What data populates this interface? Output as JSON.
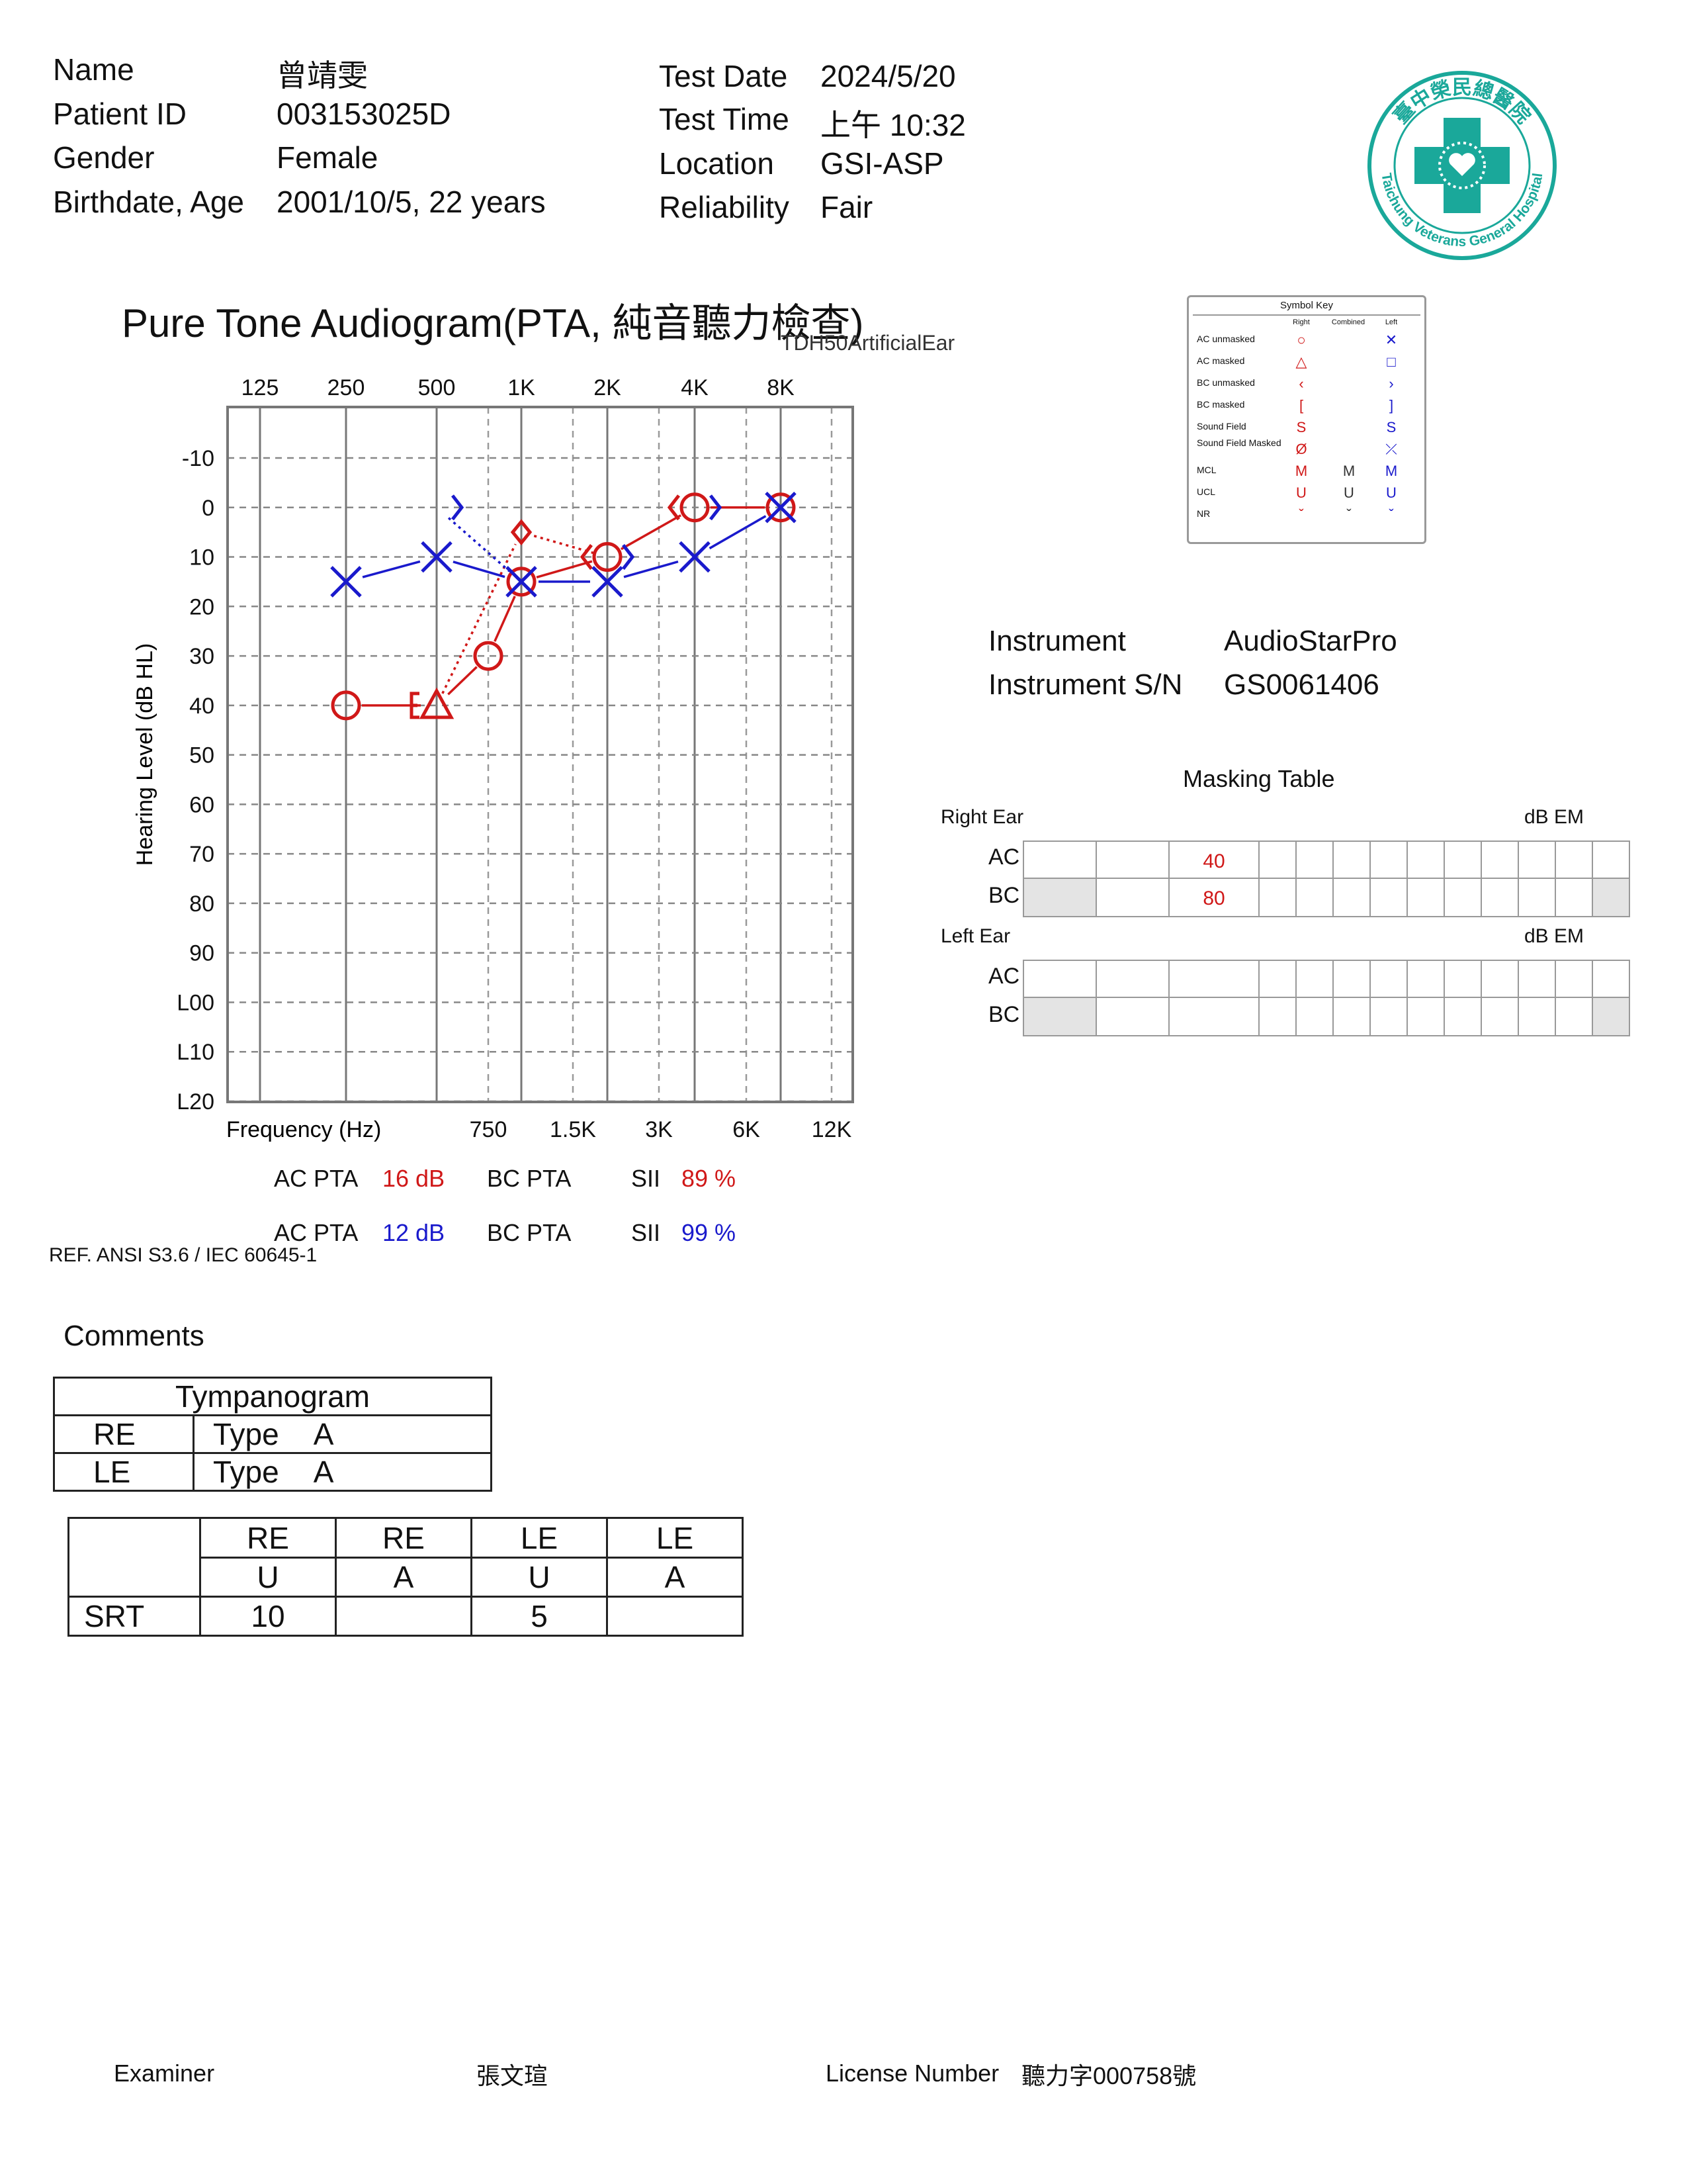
{
  "patient": {
    "name_label": "Name",
    "name_value": "曾靖雯",
    "id_label": "Patient ID",
    "id_value": "003153025D",
    "gender_label": "Gender",
    "gender_value": "Female",
    "birth_label": "Birthdate, Age",
    "birth_value": "2001/10/5, 22 years"
  },
  "test": {
    "date_label": "Test Date",
    "date_value": "2024/5/20",
    "time_label": "Test Time",
    "time_value": "上午 10:32",
    "location_label": "Location",
    "location_value": "GSI-ASP",
    "reliability_label": "Reliability",
    "reliability_value": "Fair"
  },
  "hospital": {
    "logo_top": "臺中榮民總醫院",
    "logo_bottom": "Taichung Veterans General Hospital",
    "color": "#1aa89a"
  },
  "audiogram": {
    "title": "Pure Tone Audiogram(PTA, 純音聽力檢查)",
    "transducer": "TDH50ArtificialEar",
    "ylabel": "Hearing Level (dB HL)",
    "xlabel": "Frequency (Hz)",
    "top_ticks": [
      "125",
      "250",
      "500",
      "1K",
      "2K",
      "4K",
      "8K"
    ],
    "bottom_ticks": [
      "750",
      "1.5K",
      "3K",
      "6K",
      "12K"
    ],
    "y_ticks": [
      "-10",
      "0",
      "10",
      "20",
      "30",
      "40",
      "50",
      "60",
      "70",
      "80",
      "90",
      "L00",
      "L10",
      "L20"
    ]
  },
  "chart_data": {
    "type": "line",
    "x_scale": "log",
    "ylim": [
      -10,
      120
    ],
    "y_inverted": true,
    "series": [
      {
        "color": "#d01818",
        "symbol": "circle",
        "x": [
          250,
          750,
          1000,
          2000,
          4000,
          8000
        ],
        "y": [
          40,
          30,
          15,
          10,
          0,
          0
        ]
      },
      {
        "color": "#d01818",
        "symbol": "triangle",
        "x": [
          500
        ],
        "y": [
          40
        ]
      },
      {
        "color": "#d01818",
        "symbol": "bc-masked-bracket",
        "x": [
          500
        ],
        "y": [
          40
        ]
      },
      {
        "color": "#d01818",
        "symbol": "bc-unmasked-lt",
        "x": [
          2000,
          4000
        ],
        "y": [
          10,
          0
        ]
      },
      {
        "color": "#1a1acc",
        "symbol": "x",
        "x": [
          250,
          500,
          1000,
          2000,
          4000,
          8000
        ],
        "y": [
          15,
          10,
          15,
          15,
          10,
          0
        ]
      },
      {
        "color": "#1a1acc",
        "symbol": "bc-unmasked-gt",
        "x": [
          500,
          2000,
          4000
        ],
        "y": [
          0,
          10,
          0
        ]
      },
      {
        "color": "#d01818",
        "symbol": "diamond",
        "x": [
          1000
        ],
        "y": [
          5
        ]
      }
    ]
  },
  "pta": {
    "right": {
      "ac_label": "AC PTA",
      "ac_value": "16 dB",
      "bc_label": "BC PTA",
      "sii_label": "SII",
      "sii_value": "89 %"
    },
    "left": {
      "ac_label": "AC PTA",
      "ac_value": "12 dB",
      "bc_label": "BC PTA",
      "sii_label": "SII",
      "sii_value": "99 %"
    }
  },
  "ref": "REF. ANSI S3.6 / IEC 60645-1",
  "symbol_key": {
    "title": "Symbol Key",
    "col_right": "Right",
    "col_combined": "Combined",
    "col_left": "Left",
    "rows": [
      {
        "label": "AC unmasked",
        "right": "○",
        "combined": "",
        "left": "✕"
      },
      {
        "label": "AC masked",
        "right": "△",
        "combined": "",
        "left": "□"
      },
      {
        "label": "BC unmasked",
        "right": "‹",
        "combined": "",
        "left": "›"
      },
      {
        "label": "BC masked",
        "right": "[",
        "combined": "",
        "left": "]"
      },
      {
        "label": "Sound Field",
        "right": "S",
        "combined": "",
        "left": "S"
      },
      {
        "label": "Sound Field Masked",
        "right": "Ø",
        "combined": "",
        "left": "⤫"
      },
      {
        "label": "MCL",
        "right": "M",
        "combined": "M",
        "left": "M"
      },
      {
        "label": "UCL",
        "right": "U",
        "combined": "U",
        "left": "U"
      },
      {
        "label": "NR",
        "right": "ˇ",
        "combined": "ˇ",
        "left": "ˇ"
      }
    ]
  },
  "instrument": {
    "label": "Instrument",
    "value": "AudioStarPro",
    "sn_label": "Instrument S/N",
    "sn_value": "GS0061406"
  },
  "masking": {
    "title": "Masking Table",
    "right_ear": "Right Ear",
    "left_ear": "Left Ear",
    "unit": "dB EM",
    "ac": "AC",
    "bc": "BC",
    "right_ac": [
      "",
      "",
      "40",
      "",
      "",
      "",
      "",
      "",
      "",
      "",
      "",
      "",
      ""
    ],
    "right_bc": [
      "",
      "",
      "80",
      "",
      "",
      "",
      "",
      "",
      "",
      "",
      "",
      "",
      ""
    ]
  },
  "comments": {
    "label": "Comments",
    "tymp_title": "Tympanogram",
    "re": "RE",
    "le": "LE",
    "type_label": "Type",
    "re_type": "A",
    "le_type": "A"
  },
  "srt": {
    "headers_ear": [
      "RE",
      "RE",
      "LE",
      "LE"
    ],
    "headers_mask": [
      "U",
      "A",
      "U",
      "A"
    ],
    "row_label": "SRT",
    "values": [
      "10",
      "",
      "5",
      ""
    ]
  },
  "footer": {
    "examiner_label": "Examiner",
    "examiner_value": "張文瑄",
    "license_label": "License Number",
    "license_value": "聽力字000758號"
  }
}
